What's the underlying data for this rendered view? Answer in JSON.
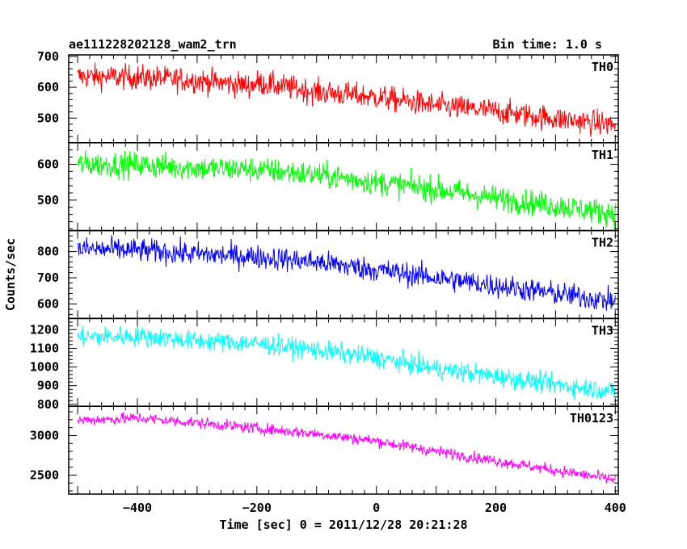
{
  "header": {
    "left_title": "ae111228202128_wam2_trn",
    "right_title": "Bin time: 1.0 s"
  },
  "chart_data": {
    "type": "line",
    "x_range": [
      -515,
      405
    ],
    "x_ticks": [
      -400,
      -200,
      0,
      200,
      400
    ],
    "xlabel": "Time [sec] 0 = 2011/12/28 20:21:28",
    "ylabel": "Counts/sec",
    "panels": [
      {
        "name": "TH0",
        "color": "#ff0000",
        "ylim": [
          420,
          705
        ],
        "yticks": [
          500,
          600,
          700
        ],
        "trend": [
          [
            -500,
            635
          ],
          [
            -400,
            632
          ],
          [
            -300,
            622
          ],
          [
            -210,
            605
          ],
          [
            -200,
            615
          ],
          [
            -100,
            585
          ],
          [
            0,
            568
          ],
          [
            100,
            540
          ],
          [
            200,
            522
          ],
          [
            300,
            498
          ],
          [
            400,
            478
          ]
        ],
        "noise": 34
      },
      {
        "name": "TH1",
        "color": "#00ff00",
        "ylim": [
          415,
          660
        ],
        "yticks": [
          500,
          600
        ],
        "trend": [
          [
            -500,
            600
          ],
          [
            -400,
            598
          ],
          [
            -300,
            590
          ],
          [
            -200,
            585
          ],
          [
            -100,
            570
          ],
          [
            0,
            550
          ],
          [
            100,
            530
          ],
          [
            200,
            505
          ],
          [
            300,
            485
          ],
          [
            400,
            462
          ]
        ],
        "noise": 30
      },
      {
        "name": "TH2",
        "color": "#0000ff",
        "ylim": [
          545,
          880
        ],
        "yticks": [
          600,
          700,
          800
        ],
        "trend": [
          [
            -500,
            810
          ],
          [
            -400,
            805
          ],
          [
            -300,
            790
          ],
          [
            -200,
            780
          ],
          [
            -100,
            760
          ],
          [
            0,
            730
          ],
          [
            100,
            700
          ],
          [
            200,
            670
          ],
          [
            300,
            640
          ],
          [
            400,
            610
          ]
        ],
        "noise": 38
      },
      {
        "name": "TH3",
        "color": "#00ffff",
        "ylim": [
          790,
          1260
        ],
        "yticks": [
          800,
          900,
          1000,
          1100,
          1200
        ],
        "trend": [
          [
            -500,
            1160
          ],
          [
            -400,
            1165
          ],
          [
            -300,
            1140
          ],
          [
            -200,
            1125
          ],
          [
            -100,
            1090
          ],
          [
            0,
            1050
          ],
          [
            100,
            990
          ],
          [
            200,
            950
          ],
          [
            300,
            905
          ],
          [
            400,
            870
          ]
        ],
        "noise": 45
      },
      {
        "name": "TH0123",
        "color": "#ff00ff",
        "ylim": [
          2260,
          3370
        ],
        "yticks": [
          2500,
          3000
        ],
        "trend": [
          [
            -500,
            3190
          ],
          [
            -400,
            3220
          ],
          [
            -300,
            3160
          ],
          [
            -200,
            3090
          ],
          [
            -100,
            3020
          ],
          [
            0,
            2930
          ],
          [
            100,
            2800
          ],
          [
            200,
            2680
          ],
          [
            300,
            2560
          ],
          [
            400,
            2440
          ]
        ],
        "noise": 60
      }
    ]
  }
}
